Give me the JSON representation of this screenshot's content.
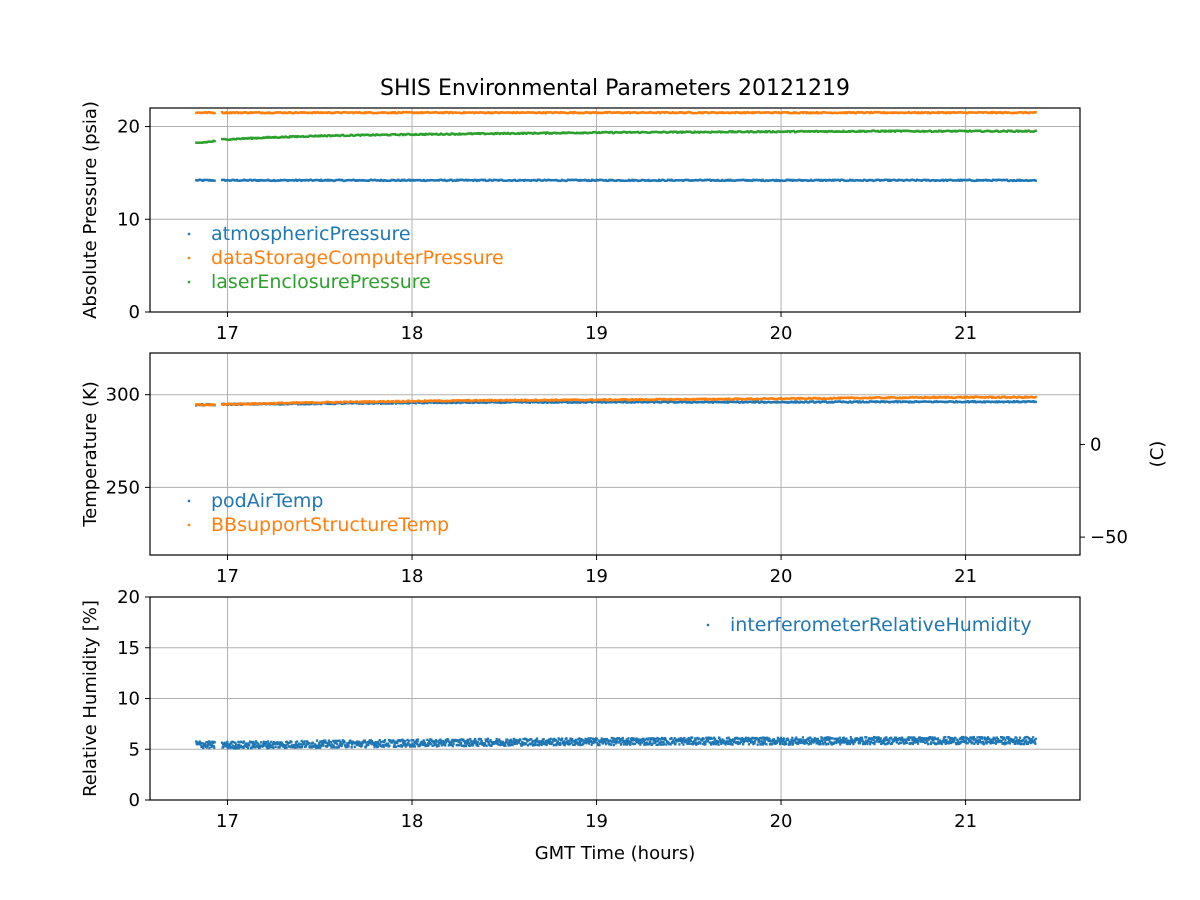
{
  "title": "SHIS Environmental Parameters 20121219",
  "colors": {
    "blue": "#1f77b4",
    "orange": "#ff7f0e",
    "green": "#2ca02c"
  },
  "chart_data": [
    {
      "type": "scatter",
      "ylabel": "Absolute Pressure (psia)",
      "xlim": [
        16.58,
        21.62
      ],
      "ylim": [
        0,
        22
      ],
      "xticks": [
        17,
        18,
        19,
        20,
        21
      ],
      "yticks": [
        0,
        10,
        20
      ],
      "grid": true,
      "legend_position": "lower-left",
      "series": [
        {
          "name": "atmosphericPressure",
          "color": "#1f77b4",
          "x": [
            16.83,
            16.92,
            16.97,
            17.5,
            18.0,
            18.5,
            19.0,
            19.5,
            20.0,
            20.5,
            21.0,
            21.38
          ],
          "y": [
            14.2,
            14.2,
            14.2,
            14.2,
            14.2,
            14.2,
            14.2,
            14.2,
            14.2,
            14.2,
            14.2,
            14.2
          ]
        },
        {
          "name": "dataStorageComputerPressure",
          "color": "#ff7f0e",
          "x": [
            16.83,
            16.92,
            16.97,
            17.5,
            18.0,
            18.5,
            19.0,
            19.5,
            20.0,
            20.5,
            21.0,
            21.38
          ],
          "y": [
            21.5,
            21.5,
            21.5,
            21.5,
            21.5,
            21.5,
            21.5,
            21.5,
            21.5,
            21.5,
            21.5,
            21.5
          ]
        },
        {
          "name": "laserEnclosurePressure",
          "color": "#2ca02c",
          "x": [
            16.83,
            16.92,
            16.97,
            17.2,
            17.5,
            18.0,
            18.5,
            19.0,
            19.5,
            20.0,
            20.5,
            21.0,
            21.38
          ],
          "y": [
            18.2,
            18.4,
            18.6,
            18.8,
            19.0,
            19.15,
            19.25,
            19.35,
            19.4,
            19.45,
            19.5,
            19.5,
            19.5
          ]
        }
      ]
    },
    {
      "type": "scatter",
      "ylabel": "Temperature (K)",
      "ylabel_right": "(C)",
      "xlim": [
        16.58,
        21.62
      ],
      "ylim": [
        213.5,
        322.5
      ],
      "xticks": [
        17,
        18,
        19,
        20,
        21
      ],
      "yticks": [
        250,
        300
      ],
      "yticks_right": [
        -50,
        0
      ],
      "grid": true,
      "legend_position": "lower-left",
      "series": [
        {
          "name": "podAirTemp",
          "color": "#1f77b4",
          "x": [
            16.83,
            16.92,
            16.97,
            17.5,
            18.0,
            18.5,
            19.0,
            19.5,
            20.0,
            20.5,
            21.0,
            21.38
          ],
          "y": [
            294.5,
            294.5,
            294.8,
            295.2,
            295.6,
            295.9,
            296.0,
            296.0,
            296.0,
            296.1,
            296.2,
            296.2
          ]
        },
        {
          "name": "BBsupportStructureTemp",
          "color": "#ff7f0e",
          "x": [
            16.83,
            16.92,
            16.97,
            17.5,
            18.0,
            18.5,
            19.0,
            19.5,
            20.0,
            20.5,
            21.0,
            21.38
          ],
          "y": [
            294.5,
            294.5,
            294.8,
            295.8,
            296.5,
            297.0,
            297.2,
            297.5,
            297.8,
            298.3,
            298.6,
            298.6
          ]
        }
      ]
    },
    {
      "type": "scatter",
      "ylabel": "Relative Humidity [%]",
      "xlabel": "GMT Time (hours)",
      "xlim": [
        16.58,
        21.62
      ],
      "ylim": [
        0,
        20
      ],
      "xticks": [
        17,
        18,
        19,
        20,
        21
      ],
      "yticks": [
        0,
        5,
        10,
        15,
        20
      ],
      "grid": true,
      "legend_position": "upper-right",
      "series": [
        {
          "name": "interferometerRelativeHumidity",
          "color": "#1f77b4",
          "x": [
            16.83,
            16.92,
            16.97,
            17.5,
            18.0,
            18.5,
            19.0,
            19.5,
            20.0,
            20.5,
            21.0,
            21.38
          ],
          "y": [
            5.5,
            5.4,
            5.4,
            5.5,
            5.6,
            5.7,
            5.75,
            5.8,
            5.8,
            5.85,
            5.85,
            5.85
          ]
        }
      ]
    }
  ]
}
